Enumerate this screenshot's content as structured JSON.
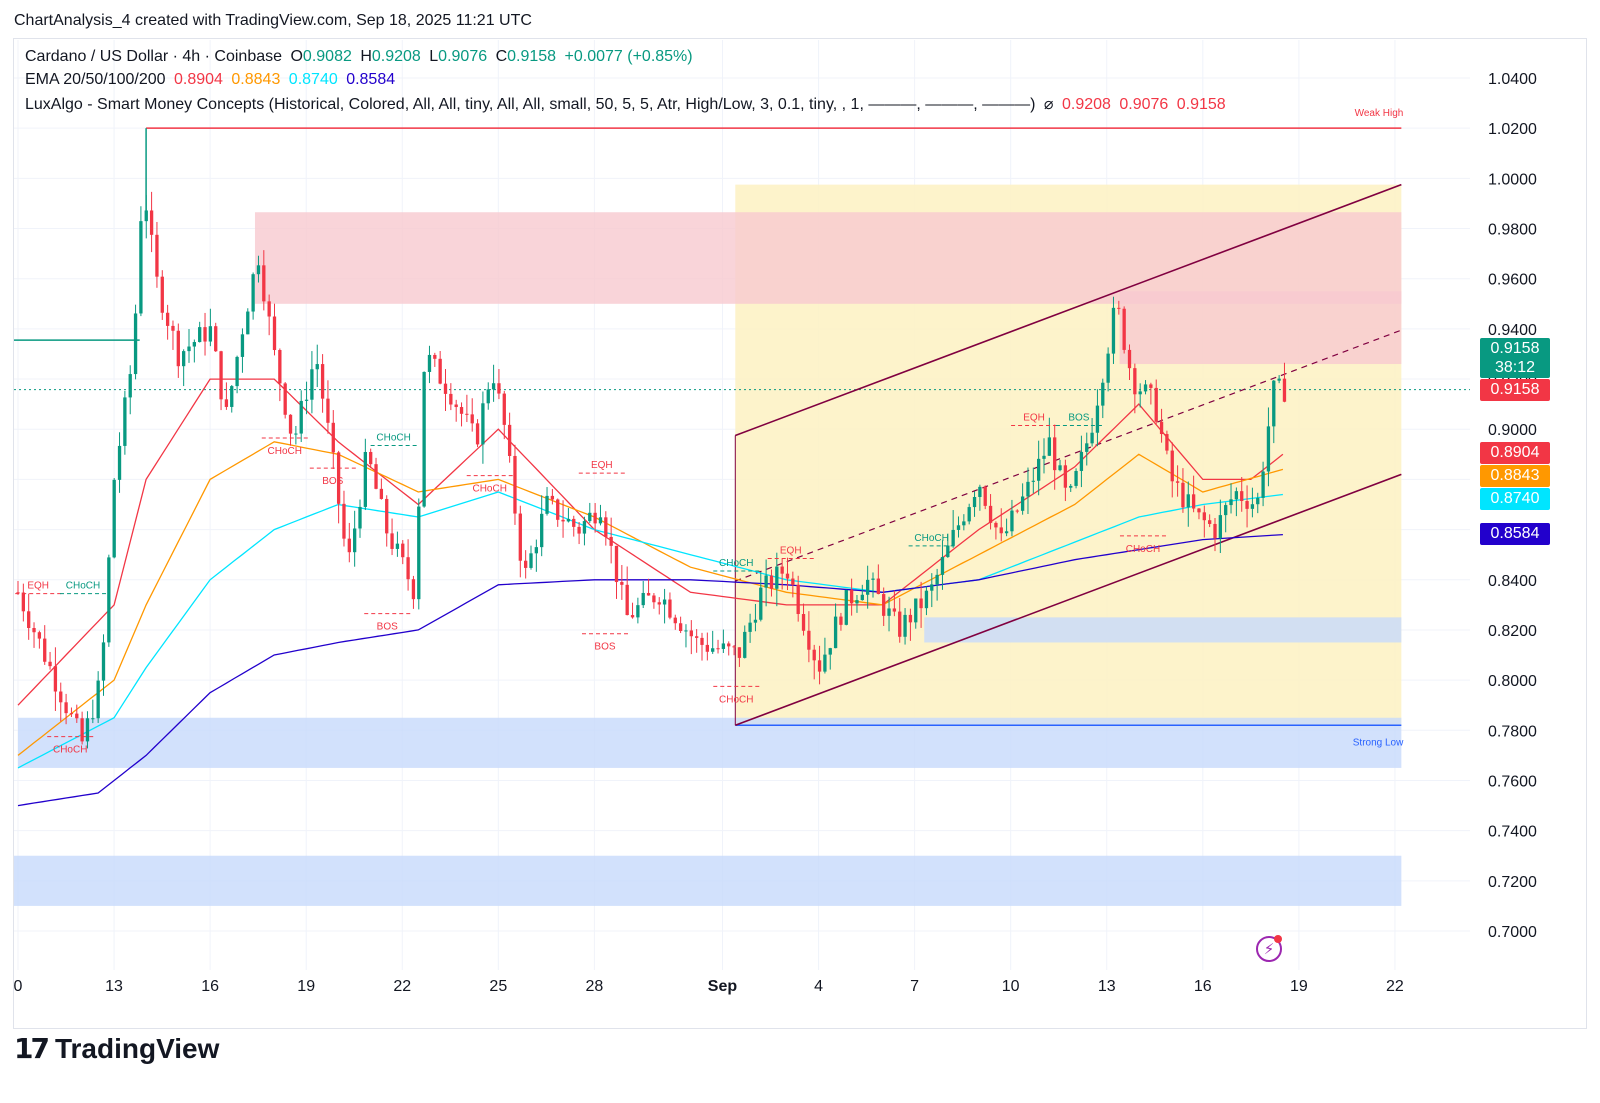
{
  "header": {
    "title": "ChartAnalysis_4 created with TradingView.com, Sep 18, 2025 11:21 UTC"
  },
  "legend": {
    "symbol": "Cardano / US Dollar · 4h · Coinbase",
    "open_label": "O",
    "open": "0.9082",
    "high_label": "H",
    "high": "0.9208",
    "low_label": "L",
    "low": "0.9076",
    "close_label": "C",
    "close": "0.9158",
    "change": "+0.0077 (+0.85%)",
    "ema_label": "EMA 20/50/100/200",
    "ema20": "0.8904",
    "ema50": "0.8843",
    "ema100": "0.8740",
    "ema200": "0.8584",
    "luxalgo": "LuxAlgo - Smart Money Concepts (Historical, Colored, All, All, tiny, All, All, small, 50, 5, 5, Atr, High/Low, 3, 0.1, tiny, , 1, ———, ———, ———)",
    "lux_symbol": "⌀",
    "lux_values": [
      "0.9208",
      "0.9076",
      "0.9158"
    ]
  },
  "price_tags": {
    "last_price": "0.9158",
    "countdown": "38:12",
    "close_line": "0.9158",
    "ema20": "0.8904",
    "ema50": "0.8843",
    "ema100": "0.8740",
    "ema200": "0.8584"
  },
  "colors": {
    "up": "#089981",
    "down": "#f23645",
    "ema20": "#f23645",
    "ema50": "#ff9800",
    "ema100": "#00e5ff",
    "ema200": "#2200cc",
    "channel": "#800040"
  },
  "chart_data": {
    "type": "candlestick",
    "timeframe": "4h",
    "ylim": [
      0.69,
      1.045
    ],
    "y_ticks": [
      "1.0400",
      "1.0200",
      "1.0000",
      "0.9800",
      "0.9600",
      "0.9400",
      "0.9200",
      "0.9000",
      "0.8800",
      "0.8600",
      "0.8400",
      "0.8200",
      "0.8000",
      "0.7800",
      "0.7600",
      "0.7400",
      "0.7200",
      "0.7000"
    ],
    "x_ticks": [
      {
        "label": "0",
        "day": 0
      },
      {
        "label": "13",
        "day": 3
      },
      {
        "label": "16",
        "day": 6
      },
      {
        "label": "19",
        "day": 9
      },
      {
        "label": "22",
        "day": 12
      },
      {
        "label": "25",
        "day": 15
      },
      {
        "label": "28",
        "day": 18
      },
      {
        "label": "Sep",
        "day": 22
      },
      {
        "label": "4",
        "day": 25
      },
      {
        "label": "7",
        "day": 28
      },
      {
        "label": "10",
        "day": 31
      },
      {
        "label": "13",
        "day": 34
      },
      {
        "label": "16",
        "day": 37
      },
      {
        "label": "19",
        "day": 40
      },
      {
        "label": "22",
        "day": 43
      }
    ],
    "day_domain": [
      0,
      45.5
    ],
    "anchors": [
      [
        0,
        0.835
      ],
      [
        1,
        0.805
      ],
      [
        2,
        0.775
      ],
      [
        2.6,
        0.8
      ],
      [
        3,
        0.88
      ],
      [
        3.6,
        0.93
      ],
      [
        3.9,
        1.0
      ],
      [
        4.3,
        0.96
      ],
      [
        5,
        0.93
      ],
      [
        6,
        0.94
      ],
      [
        6.5,
        0.905
      ],
      [
        7,
        0.94
      ],
      [
        7.5,
        0.97
      ],
      [
        8,
        0.93
      ],
      [
        8.6,
        0.895
      ],
      [
        9.3,
        0.93
      ],
      [
        9.8,
        0.89
      ],
      [
        10.3,
        0.845
      ],
      [
        10.9,
        0.89
      ],
      [
        11.5,
        0.86
      ],
      [
        12.4,
        0.835
      ],
      [
        12.7,
        0.93
      ],
      [
        13.5,
        0.915
      ],
      [
        14.3,
        0.895
      ],
      [
        14.8,
        0.925
      ],
      [
        15.2,
        0.9
      ],
      [
        15.8,
        0.84
      ],
      [
        16.5,
        0.87
      ],
      [
        17.5,
        0.86
      ],
      [
        18.2,
        0.87
      ],
      [
        19,
        0.825
      ],
      [
        20,
        0.835
      ],
      [
        21.2,
        0.815
      ],
      [
        22.5,
        0.81
      ],
      [
        23.2,
        0.835
      ],
      [
        24,
        0.845
      ],
      [
        24.5,
        0.825
      ],
      [
        25,
        0.805
      ],
      [
        25.8,
        0.83
      ],
      [
        26.5,
        0.84
      ],
      [
        27.5,
        0.82
      ],
      [
        28.5,
        0.835
      ],
      [
        29.3,
        0.86
      ],
      [
        30,
        0.88
      ],
      [
        30.7,
        0.855
      ],
      [
        31.5,
        0.875
      ],
      [
        32.2,
        0.895
      ],
      [
        32.8,
        0.87
      ],
      [
        33.5,
        0.9
      ],
      [
        34.3,
        0.95
      ],
      [
        34.8,
        0.92
      ],
      [
        35.5,
        0.91
      ],
      [
        36,
        0.88
      ],
      [
        36.8,
        0.865
      ],
      [
        37.4,
        0.86
      ],
      [
        38,
        0.875
      ],
      [
        38.7,
        0.87
      ],
      [
        39.2,
        0.915
      ],
      [
        39.55,
        0.9158
      ]
    ],
    "ema_anchors": {
      "ema20": [
        [
          0,
          0.79
        ],
        [
          3,
          0.83
        ],
        [
          4,
          0.88
        ],
        [
          6,
          0.92
        ],
        [
          8,
          0.92
        ],
        [
          10,
          0.895
        ],
        [
          12.5,
          0.87
        ],
        [
          15,
          0.9
        ],
        [
          18,
          0.86
        ],
        [
          21,
          0.835
        ],
        [
          24,
          0.83
        ],
        [
          27,
          0.83
        ],
        [
          30,
          0.86
        ],
        [
          33,
          0.885
        ],
        [
          35,
          0.91
        ],
        [
          37,
          0.88
        ],
        [
          38.5,
          0.88
        ],
        [
          39.5,
          0.89
        ]
      ],
      "ema50": [
        [
          0,
          0.77
        ],
        [
          3,
          0.8
        ],
        [
          4,
          0.83
        ],
        [
          6,
          0.88
        ],
        [
          8,
          0.895
        ],
        [
          10,
          0.89
        ],
        [
          12.5,
          0.875
        ],
        [
          15,
          0.88
        ],
        [
          18,
          0.865
        ],
        [
          21,
          0.845
        ],
        [
          24,
          0.835
        ],
        [
          27,
          0.83
        ],
        [
          30,
          0.85
        ],
        [
          33,
          0.87
        ],
        [
          35,
          0.89
        ],
        [
          37,
          0.875
        ],
        [
          39.5,
          0.884
        ]
      ],
      "ema100": [
        [
          0,
          0.765
        ],
        [
          3,
          0.785
        ],
        [
          4,
          0.805
        ],
        [
          6,
          0.84
        ],
        [
          8,
          0.86
        ],
        [
          10,
          0.87
        ],
        [
          12.5,
          0.865
        ],
        [
          15,
          0.875
        ],
        [
          18,
          0.86
        ],
        [
          21,
          0.85
        ],
        [
          24,
          0.84
        ],
        [
          27,
          0.835
        ],
        [
          30,
          0.84
        ],
        [
          33,
          0.855
        ],
        [
          35,
          0.865
        ],
        [
          37,
          0.87
        ],
        [
          39.5,
          0.874
        ]
      ],
      "ema200": [
        [
          0,
          0.75
        ],
        [
          2.5,
          0.755
        ],
        [
          4,
          0.77
        ],
        [
          6,
          0.795
        ],
        [
          8,
          0.81
        ],
        [
          10,
          0.815
        ],
        [
          12.5,
          0.82
        ],
        [
          15,
          0.838
        ],
        [
          18,
          0.84
        ],
        [
          21,
          0.84
        ],
        [
          24,
          0.838
        ],
        [
          27,
          0.835
        ],
        [
          30,
          0.84
        ],
        [
          33,
          0.848
        ],
        [
          35,
          0.852
        ],
        [
          37,
          0.856
        ],
        [
          39.5,
          0.858
        ]
      ]
    },
    "zones": [
      {
        "from_day": 7.4,
        "to_day": 43.2,
        "y1": 0.9865,
        "y2": 0.95,
        "color": "#f7c9cf"
      },
      {
        "from_day": 34.4,
        "to_day": 43.2,
        "y1": 0.955,
        "y2": 0.926,
        "color": "#f7c9cf"
      },
      {
        "from_day": 0,
        "to_day": 43.2,
        "y1": 0.785,
        "y2": 0.765,
        "color": "#c7d9fb"
      },
      {
        "from_day": 28.3,
        "to_day": 43.2,
        "y1": 0.825,
        "y2": 0.815,
        "color": "#c7d9fb"
      },
      {
        "from_day": -2,
        "to_day": 43.2,
        "y1": 0.73,
        "y2": 0.71,
        "color": "#c7d9fb"
      }
    ],
    "channel_box": {
      "from_day": 22.4,
      "to_day": 43.2,
      "y1": 0.9975,
      "y2": 0.782,
      "color": "#fdf1c2"
    },
    "channel_upper": [
      [
        22.4,
        0.8975
      ],
      [
        43.2,
        0.9975
      ]
    ],
    "channel_mid": [
      [
        22.4,
        0.8395
      ],
      [
        43.2,
        0.9395
      ]
    ],
    "channel_lower": [
      [
        22.4,
        0.782
      ],
      [
        43.2,
        0.882
      ]
    ],
    "levels": [
      {
        "label": "Weak High",
        "y": 1.02,
        "from_day": 4.0,
        "to_day": 43.2,
        "color": "#f23645"
      },
      {
        "label": "Strong Low",
        "y": 0.782,
        "from_day": 22.4,
        "to_day": 43.2,
        "color": "#2962ff"
      },
      {
        "label": "",
        "y": 0.9355,
        "from_day": -0.2,
        "to_day": 3.8,
        "color": "#089981"
      }
    ],
    "markers": [
      {
        "text": "EQH",
        "day": 0.1,
        "y": 0.8345,
        "color": "#f23645"
      },
      {
        "text": "CHoCH",
        "day": 1.5,
        "y": 0.8345,
        "color": "#089981"
      },
      {
        "text": "CHoCH",
        "day": 1.1,
        "y": 0.7775,
        "color": "#f23645"
      },
      {
        "text": "CHoCH",
        "day": 7.8,
        "y": 0.8965,
        "color": "#f23645"
      },
      {
        "text": "BOS",
        "day": 9.3,
        "y": 0.8845,
        "color": "#f23645"
      },
      {
        "text": "CHoCH",
        "day": 11.2,
        "y": 0.8935,
        "color": "#089981"
      },
      {
        "text": "BOS",
        "day": 11.0,
        "y": 0.8265,
        "color": "#f23645"
      },
      {
        "text": "CHoCH",
        "day": 14.2,
        "y": 0.8815,
        "color": "#f23645"
      },
      {
        "text": "EQH",
        "day": 17.7,
        "y": 0.8825,
        "color": "#f23645"
      },
      {
        "text": "BOS",
        "day": 17.8,
        "y": 0.8185,
        "color": "#f23645"
      },
      {
        "text": "CHoCH",
        "day": 21.9,
        "y": 0.8435,
        "color": "#089981"
      },
      {
        "text": "EQH",
        "day": 23.6,
        "y": 0.8485,
        "color": "#f23645"
      },
      {
        "text": "CHoCH",
        "day": 21.9,
        "y": 0.7975,
        "color": "#f23645"
      },
      {
        "text": "CHoCH",
        "day": 28.0,
        "y": 0.8535,
        "color": "#089981"
      },
      {
        "text": "EQH",
        "day": 31.2,
        "y": 0.9015,
        "color": "#f23645"
      },
      {
        "text": "BOS",
        "day": 32.6,
        "y": 0.9015,
        "color": "#089981"
      },
      {
        "text": "CHoCH",
        "day": 34.6,
        "y": 0.8575,
        "color": "#f23645"
      }
    ]
  },
  "branding": {
    "logo_text": "TradingView",
    "logo_mark": "17"
  }
}
